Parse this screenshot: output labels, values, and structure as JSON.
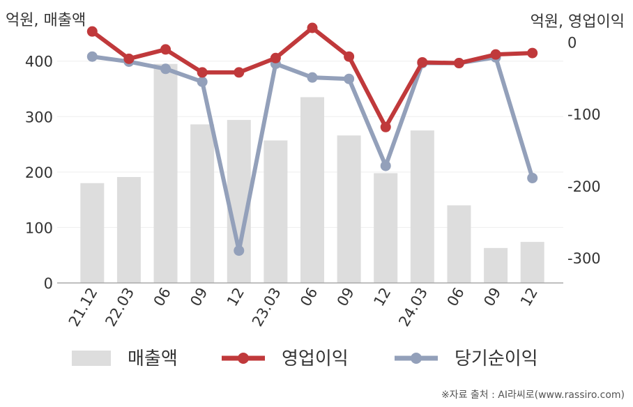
{
  "chart_data": {
    "type": "bar+line",
    "left_axis_unit": "억원, 매출액",
    "right_axis_unit": "억원, 영업이익",
    "categories": [
      "21.12",
      "22.03",
      "06",
      "09",
      "12",
      "23.03",
      "06",
      "09",
      "12",
      "24.03",
      "06",
      "09",
      "12"
    ],
    "left_axis": {
      "ylim": [
        0,
        460
      ],
      "ticks": [
        0,
        100,
        200,
        300,
        400
      ]
    },
    "right_axis": {
      "ylim": [
        -335,
        20
      ],
      "ticks": [
        0,
        -100,
        -200,
        -300
      ]
    },
    "series": [
      {
        "name": "매출액",
        "type": "bar",
        "axis": "left",
        "color": "#dddddd",
        "values": [
          180,
          191,
          395,
          286,
          294,
          257,
          335,
          266,
          198,
          275,
          140,
          63,
          74
        ]
      },
      {
        "name": "영업이익",
        "type": "line",
        "axis": "right",
        "color": "#c0393b",
        "values": [
          15,
          -23,
          -10,
          -42,
          -42,
          -22,
          20,
          -20,
          -118,
          -28,
          -29,
          -17,
          -15
        ]
      },
      {
        "name": "당기순이익",
        "type": "line",
        "axis": "right",
        "color": "#93a0ba",
        "values": [
          -20,
          -27,
          -37,
          -55,
          -290,
          -30,
          -49,
          -51,
          -172,
          -29,
          -29,
          -21,
          -189
        ]
      }
    ],
    "legend": {
      "placement": "bottom"
    },
    "grid": true
  },
  "source_note": "※자료 출처 : AI라씨로(www.rassiro.com)"
}
